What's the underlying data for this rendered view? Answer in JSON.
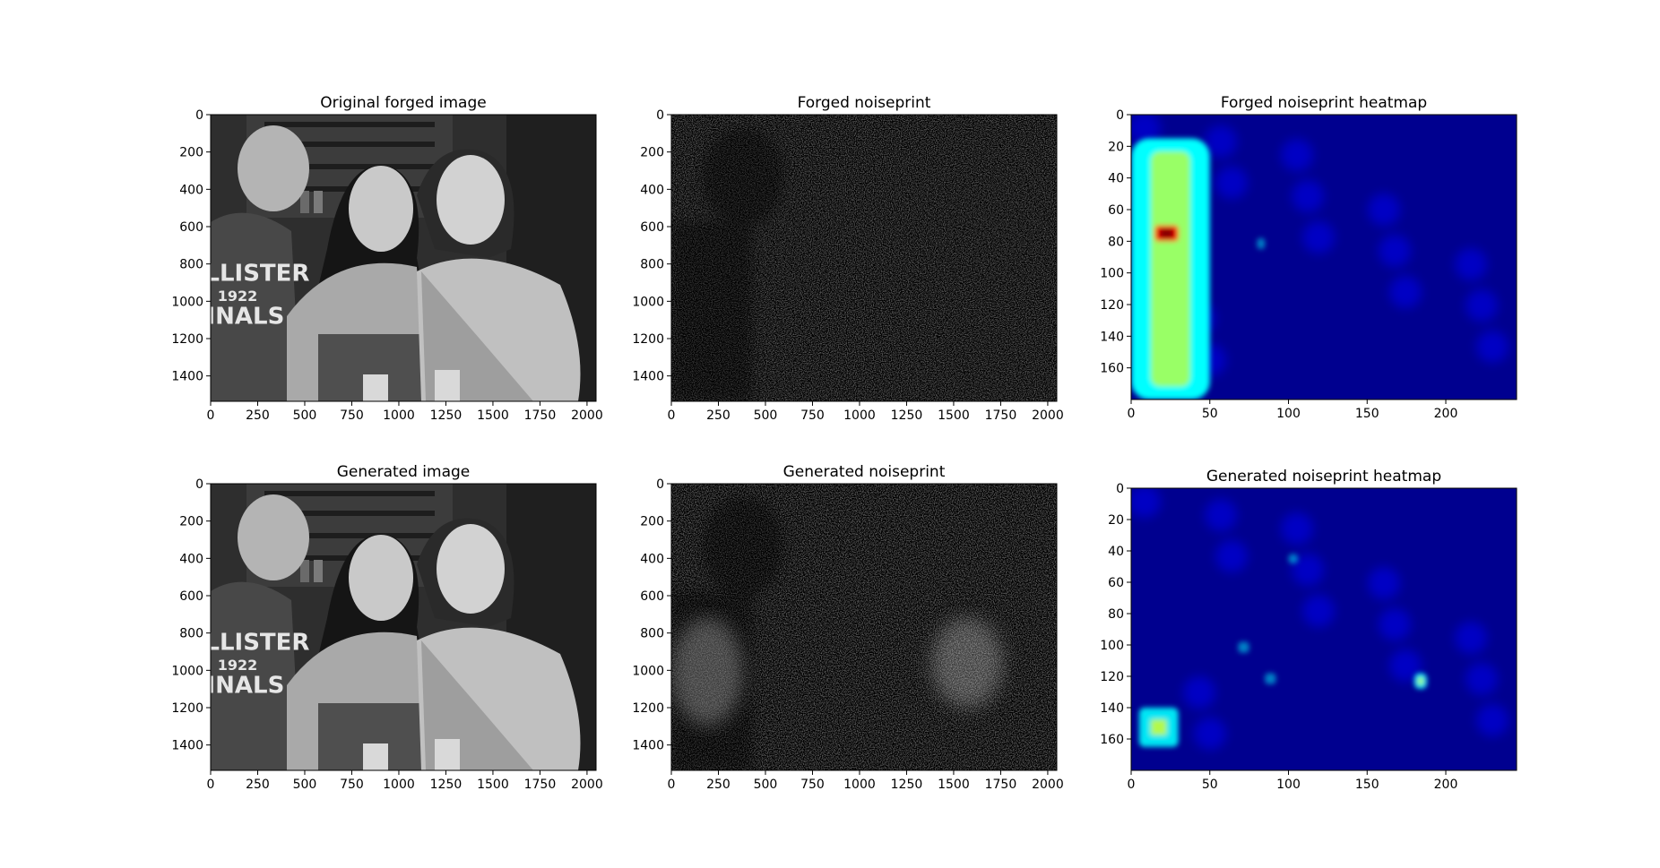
{
  "figure": {
    "panels": [
      {
        "id": "orig",
        "title": "Original forged image",
        "kind": "photo",
        "xlim": [
          0,
          2048
        ],
        "ylim": [
          1536,
          0
        ],
        "xticks": [
          "0",
          "250",
          "500",
          "750",
          "1000",
          "1250",
          "1500",
          "1750",
          "2000"
        ],
        "yticks": [
          "0",
          "200",
          "400",
          "600",
          "800",
          "1000",
          "1200",
          "1400"
        ]
      },
      {
        "id": "fnp",
        "title": "Forged noiseprint",
        "kind": "noise-forged",
        "xlim": [
          0,
          2048
        ],
        "ylim": [
          1536,
          0
        ],
        "xticks": [
          "0",
          "250",
          "500",
          "750",
          "1000",
          "1250",
          "1500",
          "1750",
          "2000"
        ],
        "yticks": [
          "0",
          "200",
          "400",
          "600",
          "800",
          "1000",
          "1200",
          "1400"
        ]
      },
      {
        "id": "fhm",
        "title": "Forged noiseprint heatmap",
        "kind": "heat-forged",
        "xlim": [
          0,
          245
        ],
        "ylim": [
          180,
          0
        ],
        "xticks": [
          "0",
          "50",
          "100",
          "150",
          "200"
        ],
        "yticks": [
          "0",
          "20",
          "40",
          "60",
          "80",
          "100",
          "120",
          "140",
          "160"
        ]
      },
      {
        "id": "gen",
        "title": "Generated image",
        "kind": "photo",
        "xlim": [
          0,
          2048
        ],
        "ylim": [
          1536,
          0
        ],
        "xticks": [
          "0",
          "250",
          "500",
          "750",
          "1000",
          "1250",
          "1500",
          "1750",
          "2000"
        ],
        "yticks": [
          "0",
          "200",
          "400",
          "600",
          "800",
          "1000",
          "1200",
          "1400"
        ]
      },
      {
        "id": "gnp",
        "title": "Generated noiseprint",
        "kind": "noise-generated",
        "xlim": [
          0,
          2048
        ],
        "ylim": [
          1536,
          0
        ],
        "xticks": [
          "0",
          "250",
          "500",
          "750",
          "1000",
          "1250",
          "1500",
          "1750",
          "2000"
        ],
        "yticks": [
          "0",
          "200",
          "400",
          "600",
          "800",
          "1000",
          "1200",
          "1400"
        ]
      },
      {
        "id": "ghm",
        "title": "Generated noiseprint heatmap",
        "kind": "heat-generated",
        "xlim": [
          0,
          245
        ],
        "ylim": [
          180,
          0
        ],
        "xticks": [
          "0",
          "50",
          "100",
          "150",
          "200"
        ],
        "yticks": [
          "0",
          "20",
          "40",
          "60",
          "80",
          "100",
          "120",
          "140",
          "160"
        ]
      }
    ],
    "photo_text": [
      "HOLLISTER",
      "1922",
      "FINALS"
    ],
    "colormap": [
      "#00008f",
      "#0000ff",
      "#00ffff",
      "#ffff00",
      "#ff0000",
      "#800000"
    ]
  },
  "chart_data": [
    {
      "type": "heatmap",
      "title": "Original forged image",
      "xlim": [
        0,
        2048
      ],
      "ylim": [
        1536,
        0
      ],
      "xticks": [
        0,
        250,
        500,
        750,
        1000,
        1250,
        1500,
        1750,
        2000
      ],
      "yticks": [
        0,
        200,
        400,
        600,
        800,
        1000,
        1200,
        1400
      ],
      "grid": false
    },
    {
      "type": "heatmap",
      "title": "Forged noiseprint",
      "xlim": [
        0,
        2048
      ],
      "ylim": [
        1536,
        0
      ],
      "xticks": [
        0,
        250,
        500,
        750,
        1000,
        1250,
        1500,
        1750,
        2000
      ],
      "yticks": [
        0,
        200,
        400,
        600,
        800,
        1000,
        1200,
        1400
      ],
      "grid": false
    },
    {
      "type": "heatmap",
      "title": "Forged noiseprint heatmap",
      "xlim": [
        0,
        245
      ],
      "ylim": [
        180,
        0
      ],
      "xticks": [
        0,
        50,
        100,
        150,
        200
      ],
      "yticks": [
        0,
        20,
        40,
        60,
        80,
        100,
        120,
        140,
        160
      ],
      "grid": false,
      "hot_regions": [
        {
          "x_range": [
            0,
            50
          ],
          "y_range": [
            15,
            180
          ],
          "level": "high"
        },
        {
          "x_range": [
            15,
            30
          ],
          "y_range": [
            70,
            80
          ],
          "level": "max"
        },
        {
          "x_range": [
            80,
            85
          ],
          "y_range": [
            78,
            85
          ],
          "level": "low"
        }
      ]
    },
    {
      "type": "heatmap",
      "title": "Generated image",
      "xlim": [
        0,
        2048
      ],
      "ylim": [
        1536,
        0
      ],
      "xticks": [
        0,
        250,
        500,
        750,
        1000,
        1250,
        1500,
        1750,
        2000
      ],
      "yticks": [
        0,
        200,
        400,
        600,
        800,
        1000,
        1200,
        1400
      ],
      "grid": false
    },
    {
      "type": "heatmap",
      "title": "Generated noiseprint",
      "xlim": [
        0,
        2048
      ],
      "ylim": [
        1536,
        0
      ],
      "xticks": [
        0,
        250,
        500,
        750,
        1000,
        1250,
        1500,
        1750,
        2000
      ],
      "yticks": [
        0,
        200,
        400,
        600,
        800,
        1000,
        1200,
        1400
      ],
      "grid": false
    },
    {
      "type": "heatmap",
      "title": "Generated noiseprint heatmap",
      "xlim": [
        0,
        245
      ],
      "ylim": [
        180,
        0
      ],
      "xticks": [
        0,
        50,
        100,
        150,
        200
      ],
      "yticks": [
        0,
        20,
        40,
        60,
        80,
        100,
        120,
        140,
        160
      ],
      "grid": false,
      "hot_regions": [
        {
          "x_range": [
            5,
            30
          ],
          "y_range": [
            140,
            165
          ],
          "level": "medium"
        },
        {
          "x_range": [
            180,
            188
          ],
          "y_range": [
            118,
            128
          ],
          "level": "medium"
        },
        {
          "x_range": [
            85,
            92
          ],
          "y_range": [
            118,
            125
          ],
          "level": "low"
        },
        {
          "x_range": [
            68,
            75
          ],
          "y_range": [
            98,
            105
          ],
          "level": "low"
        },
        {
          "x_range": [
            100,
            106
          ],
          "y_range": [
            42,
            48
          ],
          "level": "low"
        }
      ]
    }
  ]
}
